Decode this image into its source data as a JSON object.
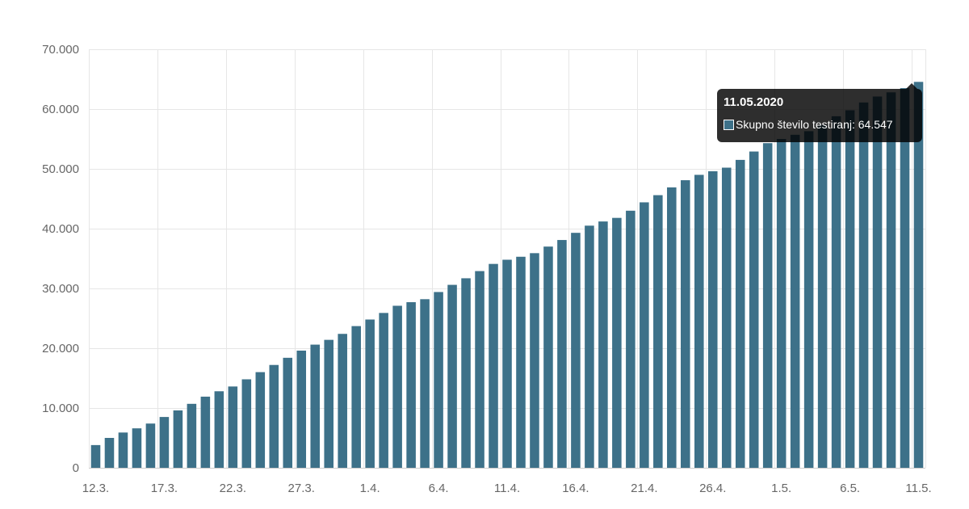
{
  "chart_data": {
    "type": "bar",
    "series": [
      {
        "name": "Skupno število testiranj",
        "color": "#3d7189",
        "values": [
          3800,
          5000,
          5900,
          6600,
          7400,
          8500,
          9600,
          10700,
          11900,
          12800,
          13600,
          14800,
          16000,
          17200,
          18400,
          19600,
          20600,
          21400,
          22400,
          23700,
          24800,
          25900,
          27100,
          27700,
          28200,
          29400,
          30600,
          31700,
          32900,
          34100,
          34800,
          35300,
          35900,
          37000,
          38100,
          39300,
          40500,
          41200,
          41800,
          43000,
          44400,
          45600,
          46900,
          48100,
          49000,
          49600,
          50200,
          51500,
          52900,
          54300,
          55000,
          55700,
          56300,
          57400,
          58800,
          59800,
          61100,
          62100,
          62800,
          63500,
          64547
        ]
      }
    ],
    "x_tick_labels": [
      "12.3.",
      "17.3.",
      "22.3.",
      "27.3.",
      "1.4.",
      "6.4.",
      "11.4.",
      "16.4.",
      "21.4.",
      "26.4.",
      "1.5.",
      "6.5.",
      "11.5."
    ],
    "x_tick_every": 5,
    "y_ticks": [
      "0",
      "10.000",
      "20.000",
      "30.000",
      "40.000",
      "50.000",
      "60.000",
      "70.000"
    ],
    "ylim": [
      0,
      70000
    ],
    "grid": true,
    "title": "",
    "xlabel": "",
    "ylabel": "",
    "tooltip": {
      "title": "11.05.2020",
      "label": "Skupno število testiranj: 64.547"
    },
    "colors": {
      "bar": "#3d7189",
      "grid": "#e6e6e6",
      "axis": "#cccccc"
    }
  }
}
